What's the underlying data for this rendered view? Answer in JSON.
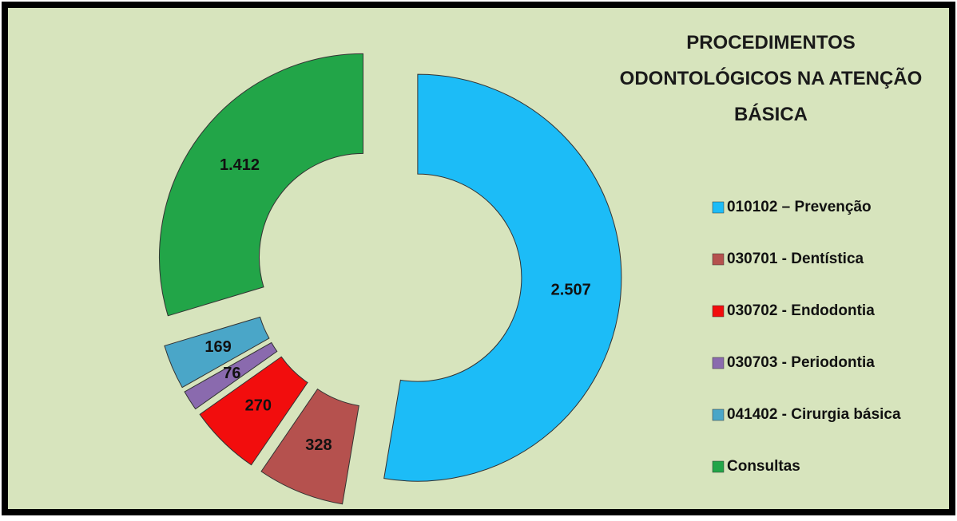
{
  "chart_data": {
    "type": "donut",
    "title": "PROCEDIMENTOS ODONTOLÓGICOS NA ATENÇÃO BÁSICA",
    "categories": [
      "010102 – Prevenção",
      "030701 - Dentística",
      "030702 - Endodontia",
      "030703 - Periodontia",
      "041402 - Cirurgia básica",
      "Consultas"
    ],
    "values": [
      2507,
      328,
      270,
      76,
      169,
      1412
    ],
    "value_labels": [
      "2.507",
      "328",
      "270",
      "76",
      "169",
      "1.412"
    ],
    "colors": [
      "#1cbcf7",
      "#b5514e",
      "#f20d0d",
      "#8a6aae",
      "#4aa6c8",
      "#22a548"
    ],
    "legend": "right"
  }
}
